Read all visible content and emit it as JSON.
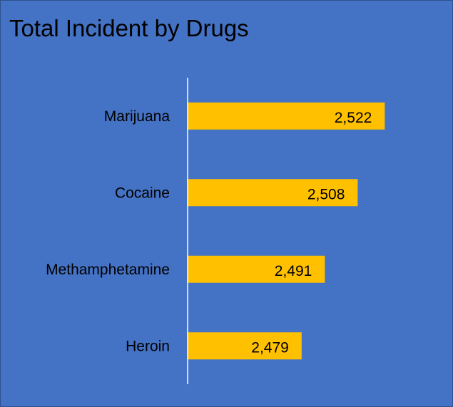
{
  "chart_data": {
    "type": "bar",
    "orientation": "horizontal",
    "title": "Total Incident by Drugs",
    "xlabel": "",
    "ylabel": "",
    "categories": [
      "Marijuana",
      "Cocaine",
      "Methamphetamine",
      "Heroin"
    ],
    "values": [
      2522,
      2508,
      2491,
      2479
    ],
    "value_labels": [
      "2,522",
      "2,508",
      "2,491",
      "2,479"
    ],
    "xlim": [
      2420,
      2530
    ],
    "grid": false,
    "legend": "none",
    "colors": {
      "background": "#4472C4",
      "bar": "#FFC000",
      "axis": "#FFFFFF",
      "text": "#000000"
    }
  }
}
